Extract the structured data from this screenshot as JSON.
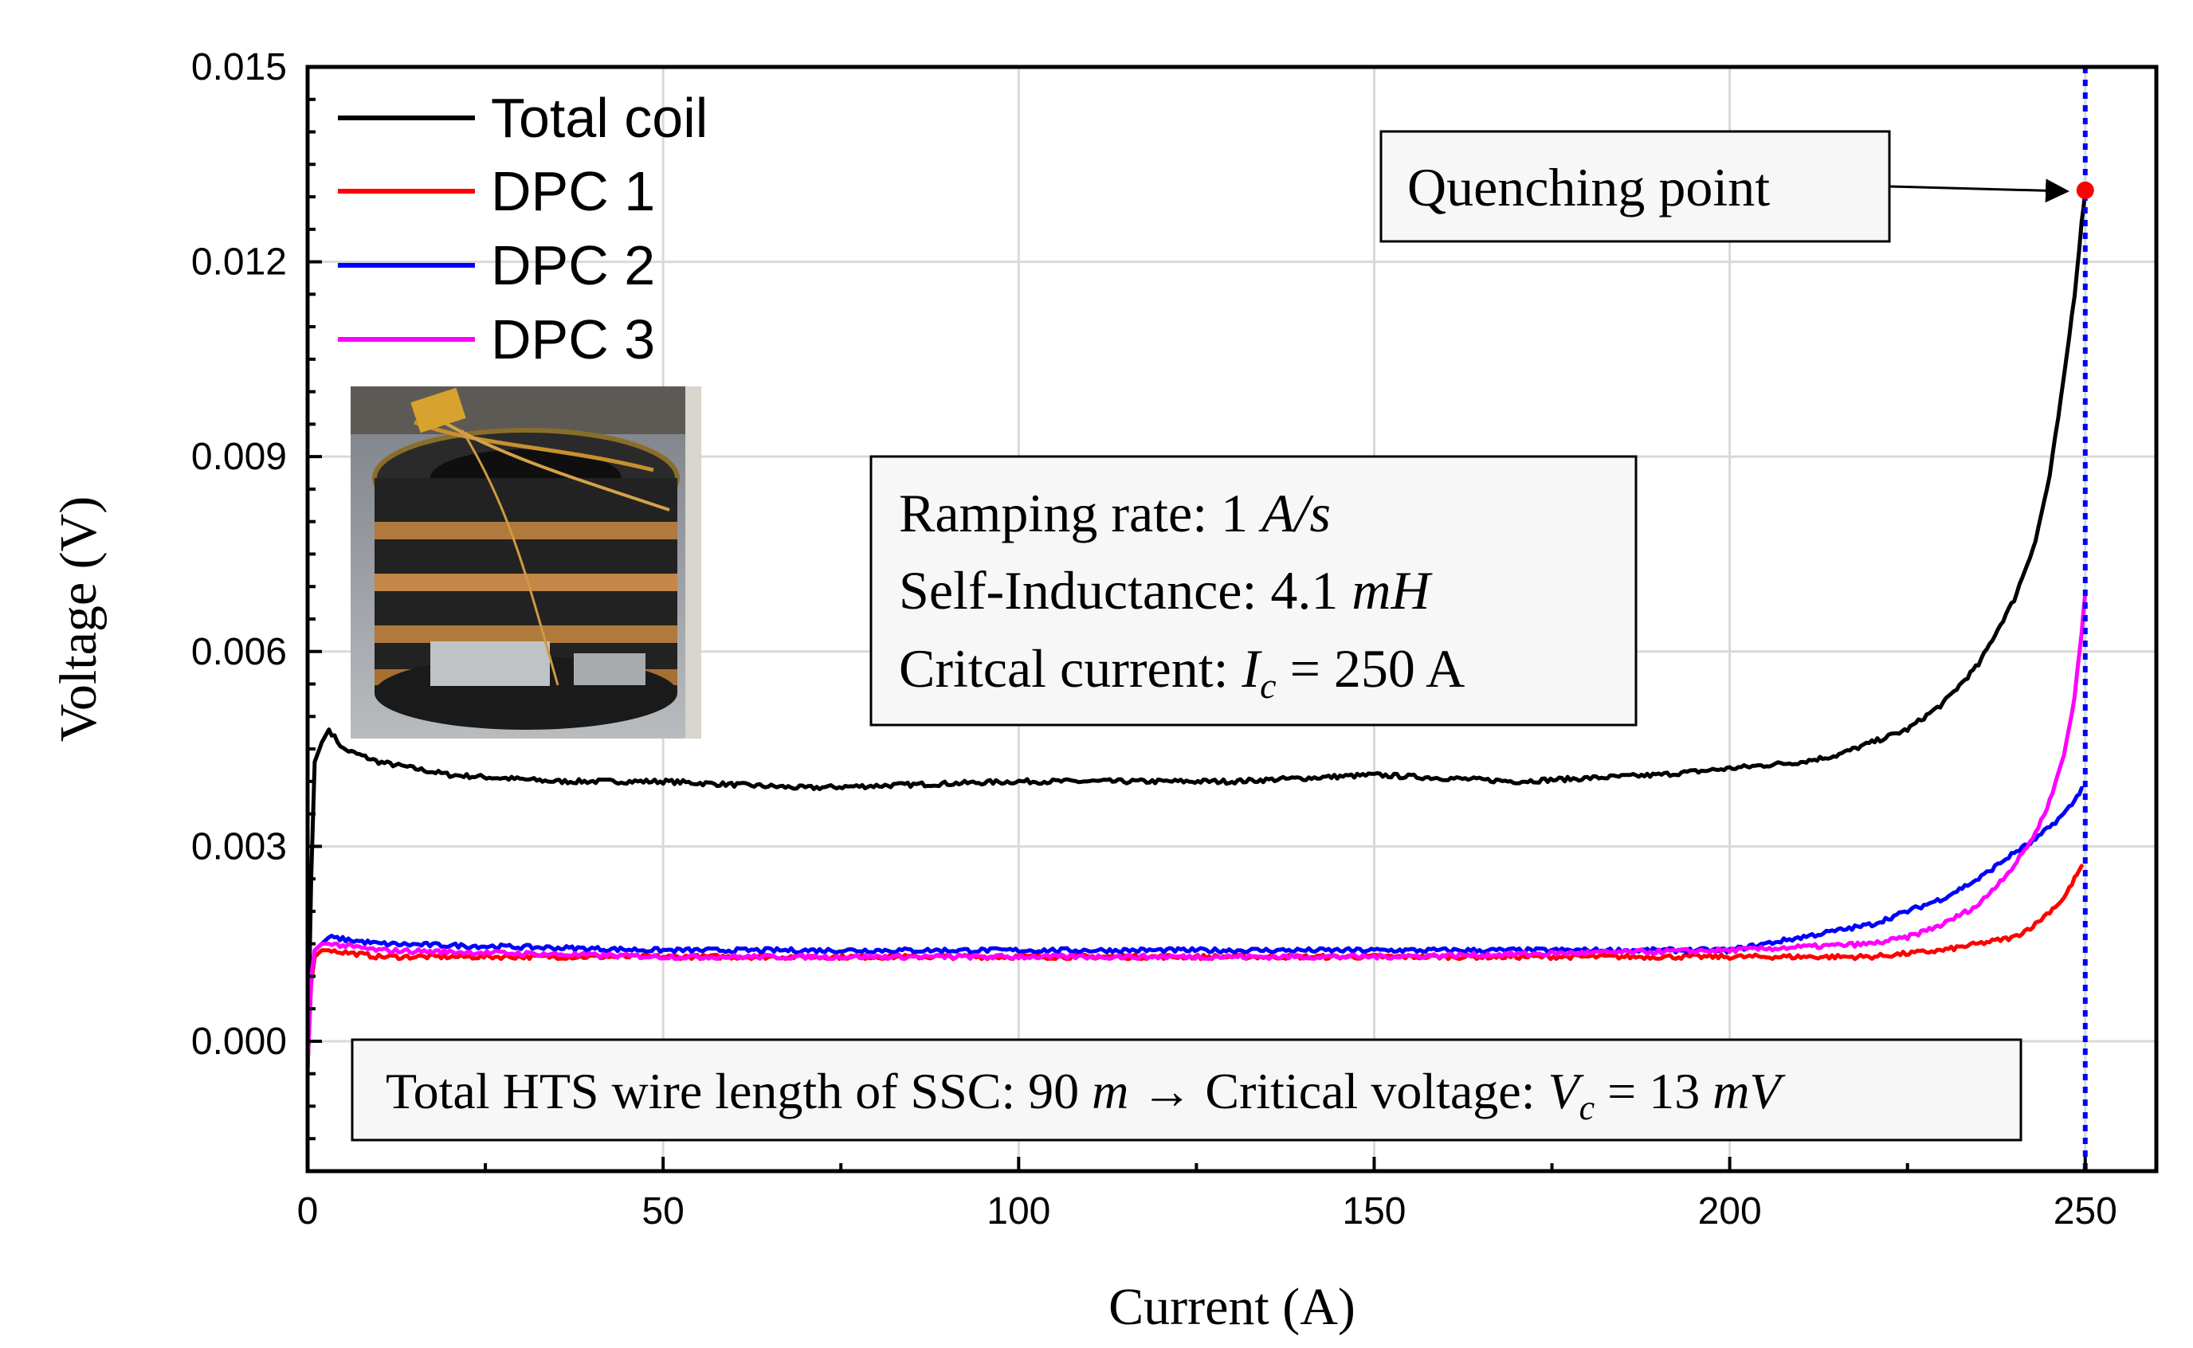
{
  "chart_data": {
    "type": "line",
    "title": "",
    "xlabel": "Current (A)",
    "ylabel": "Voltage (V)",
    "xlim": [
      0,
      260
    ],
    "ylim": [
      -0.002,
      0.015
    ],
    "xticks": [
      0,
      50,
      100,
      150,
      200,
      250
    ],
    "xtick_labels": [
      "0",
      "50",
      "100",
      "150",
      "200",
      "250"
    ],
    "yticks": [
      0.0,
      0.003,
      0.006,
      0.009,
      0.012,
      0.015
    ],
    "ytick_labels": [
      "0.000",
      "0.003",
      "0.006",
      "0.009",
      "0.012",
      "0.015"
    ],
    "grid": true,
    "legend_position": "top-left",
    "series": [
      {
        "name": "Total coil",
        "color": "#000000",
        "x": [
          0,
          0.5,
          1,
          2,
          3,
          5,
          10,
          20,
          35,
          50,
          70,
          100,
          130,
          150,
          170,
          190,
          200,
          210,
          215,
          220,
          225,
          230,
          235,
          240,
          243,
          245,
          247,
          248.5,
          249.5,
          250
        ],
        "y": [
          -0.0005,
          0.0025,
          0.0043,
          0.0046,
          0.0048,
          0.0045,
          0.0043,
          0.0041,
          0.004,
          0.004,
          0.0039,
          0.004,
          0.004,
          0.0041,
          0.004,
          0.0041,
          0.0042,
          0.0043,
          0.0044,
          0.0046,
          0.0048,
          0.0052,
          0.0058,
          0.0068,
          0.0077,
          0.0087,
          0.0102,
          0.0115,
          0.0126,
          0.0131
        ]
      },
      {
        "name": "DPC 1",
        "color": "#ff0000",
        "x": [
          0,
          0.5,
          1,
          2,
          3,
          10,
          50,
          100,
          150,
          200,
          220,
          230,
          235,
          240,
          243,
          245,
          247,
          248.5,
          249.5
        ],
        "y": [
          -0.0004,
          0.0009,
          0.0013,
          0.0014,
          0.0014,
          0.0013,
          0.0013,
          0.0013,
          0.0013,
          0.0013,
          0.0013,
          0.0014,
          0.0015,
          0.0016,
          0.0018,
          0.002,
          0.0022,
          0.0025,
          0.0027
        ]
      },
      {
        "name": "DPC 2",
        "color": "#0000ff",
        "x": [
          0,
          0.5,
          1,
          2,
          3,
          10,
          50,
          100,
          150,
          200,
          210,
          220,
          225,
          230,
          235,
          240,
          243,
          245,
          247,
          248.5,
          249.5
        ],
        "y": [
          -0.0004,
          0.001,
          0.0014,
          0.0015,
          0.0016,
          0.0015,
          0.0014,
          0.0014,
          0.0014,
          0.0014,
          0.0016,
          0.0018,
          0.002,
          0.0022,
          0.0025,
          0.0029,
          0.0031,
          0.0033,
          0.0035,
          0.0037,
          0.0039
        ]
      },
      {
        "name": "DPC 3",
        "color": "#ff00ff",
        "x": [
          0,
          0.5,
          1,
          2,
          3,
          10,
          50,
          100,
          150,
          200,
          220,
          225,
          230,
          235,
          240,
          243,
          245,
          247,
          248.5,
          249.5,
          250
        ],
        "y": [
          -0.0004,
          0.001,
          0.0014,
          0.0015,
          0.0015,
          0.0014,
          0.0013,
          0.0013,
          0.0013,
          0.0014,
          0.0015,
          0.0016,
          0.0018,
          0.0021,
          0.0027,
          0.0032,
          0.0037,
          0.0044,
          0.0053,
          0.0063,
          0.0069
        ]
      }
    ],
    "reference_line": {
      "x": 250,
      "color": "#0000ff",
      "style": "dotted"
    },
    "marker": {
      "x": 250,
      "y": 0.0131,
      "color": "#ff0000"
    },
    "annotations": {
      "quench_label": "Quenching point",
      "params": {
        "line1_prefix": "Ramping rate: 1 ",
        "line1_unit": "A/s",
        "line2_prefix": "Self-Inductance: 4.1 ",
        "line2_unit": "mH",
        "line3_prefix": "Critcal current: ",
        "line3_sym": "I",
        "line3_sub": "c",
        "line3_suffix": " = 250 A"
      },
      "footer": {
        "prefix": "Total HTS wire length of SSC: 90 ",
        "unit1": "m",
        "arrow": " → ",
        "middle": "Critical voltage: ",
        "sym": "V",
        "sub": "c",
        "suffix": " = 13 ",
        "unit2": "mV"
      }
    },
    "inset_photo": "photo of HTS coil"
  }
}
